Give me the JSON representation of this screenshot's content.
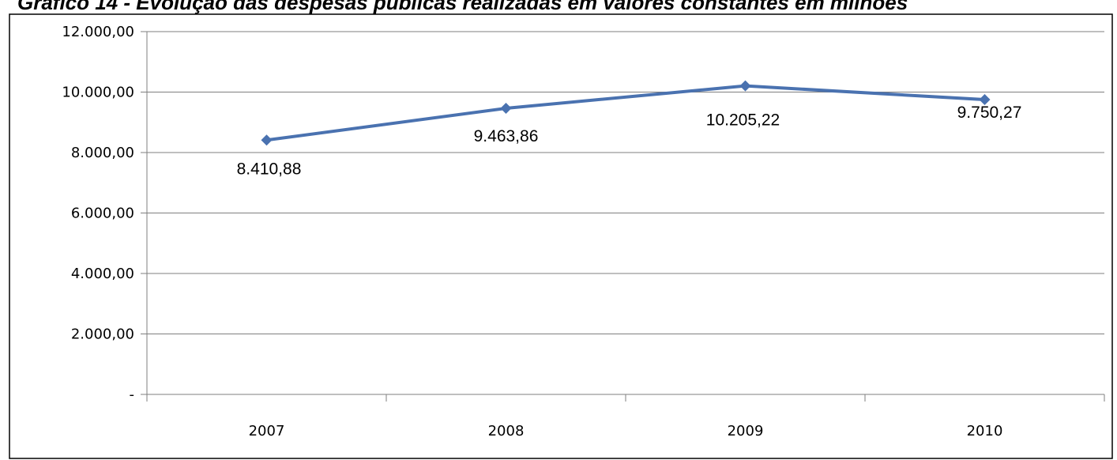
{
  "chart_title": "Gráfico 14 - Evolução das despesas públicas realizadas em valores constantes em milhões",
  "chart_data": {
    "type": "line",
    "title": "Gráfico 14 - Evolução das despesas públicas realizadas em valores constantes em milhões",
    "xlabel": "",
    "ylabel": "",
    "categories": [
      "2007",
      "2008",
      "2009",
      "2010"
    ],
    "series": [
      {
        "values": [
          8410.88,
          9463.86,
          10205.22,
          9750.27
        ],
        "data_labels": [
          "8.410,88",
          "9.463,86",
          "10.205,22",
          "9.750,27"
        ],
        "color": "#4a72b0"
      }
    ],
    "ylim": [
      0,
      12000
    ],
    "y_ticks": [
      0,
      2000,
      4000,
      6000,
      8000,
      10000,
      12000
    ],
    "y_tick_labels": [
      "-",
      "2.000,00",
      "4.000,00",
      "6.000,00",
      "8.000,00",
      "10.000,00",
      "12.000,00"
    ],
    "grid": true,
    "legend": "none"
  }
}
